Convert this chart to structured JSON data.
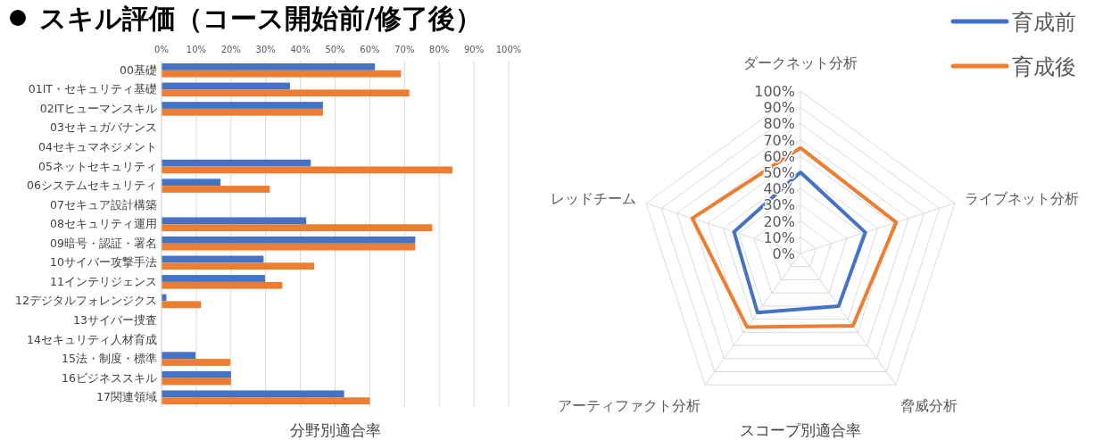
{
  "chart_data": [
    {
      "type": "bar",
      "title": "スキル評価（コース開始前/修了後）",
      "xlabel": "分野別適合率",
      "orientation": "horizontal",
      "categories": [
        "00基礎",
        "01IT・セキュリティ基礎",
        "02ITヒューマンスキル",
        "03セキュガバナンス",
        "04セキュマネジメント",
        "05ネットセキュリティ",
        "06システムセキュリティ",
        "07セキュア設計構築",
        "08セキュリティ運用",
        "09暗号・認証・署名",
        "10サイバー攻撃手法",
        "11インテリジェンス",
        "12デジタルフォレンジクス",
        "13サイバー捜査",
        "14セキュリティ人材育成",
        "15法・制度・標準",
        "16ビジネススキル",
        "17関連領域"
      ],
      "series": [
        {
          "color": "#4472c4",
          "values": [
            61.5,
            37,
            46.5,
            0,
            0,
            43,
            17,
            0,
            41.7,
            73.1,
            29.4,
            29.8,
            1.4,
            0,
            0,
            9.8,
            20,
            52.6
          ]
        },
        {
          "color": "#ed7d31",
          "values": [
            69,
            71.4,
            46.5,
            0,
            0,
            83.8,
            31.2,
            0,
            78,
            73.1,
            44,
            34.8,
            11.4,
            0,
            0,
            19.8,
            20,
            60
          ]
        }
      ],
      "xlim": [
        0,
        100
      ],
      "xticks": [
        {
          "value": 0,
          "label": "0%"
        },
        {
          "value": 10,
          "label": "10%"
        },
        {
          "value": 20,
          "label": "20%"
        },
        {
          "value": 30,
          "label": "30%"
        },
        {
          "value": 40,
          "label": "40%"
        },
        {
          "value": 50,
          "label": "50%"
        },
        {
          "value": 60,
          "label": "60%"
        },
        {
          "value": 70,
          "label": "70%"
        },
        {
          "value": 80,
          "label": "80%"
        },
        {
          "value": 90,
          "label": "90%"
        },
        {
          "value": 100,
          "label": "100%"
        }
      ],
      "grid": "x"
    },
    {
      "type": "radar",
      "xlabel": "スコープ別適合率",
      "categories": [
        "ダークネット分析",
        "ライブネット分析",
        "脅威分析",
        "アーティファクト分析",
        "レッドチーム"
      ],
      "series": [
        {
          "name": "育成前",
          "color": "#4472c4",
          "values": [
            50,
            42,
            40,
            45,
            43
          ]
        },
        {
          "name": "育成後",
          "color": "#ed7d31",
          "values": [
            65,
            62,
            55,
            56,
            70
          ]
        }
      ],
      "ylim": [
        0,
        100
      ],
      "yticks": [
        {
          "value": 0,
          "label": "0%"
        },
        {
          "value": 10,
          "label": "10%"
        },
        {
          "value": 20,
          "label": "20%"
        },
        {
          "value": 30,
          "label": "30%"
        },
        {
          "value": 40,
          "label": "40%"
        },
        {
          "value": 50,
          "label": "50%"
        },
        {
          "value": 60,
          "label": "60%"
        },
        {
          "value": 70,
          "label": "70%"
        },
        {
          "value": 80,
          "label": "80%"
        },
        {
          "value": 90,
          "label": "90%"
        },
        {
          "value": 100,
          "label": "100%"
        }
      ],
      "grid": true,
      "legend": "top right"
    }
  ]
}
